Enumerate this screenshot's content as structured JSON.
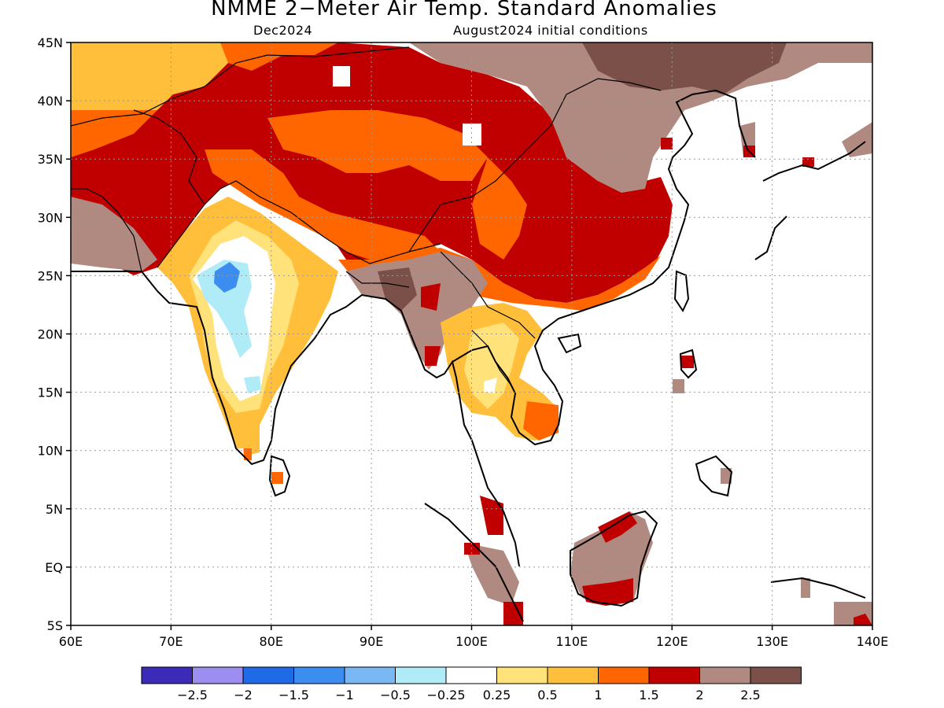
{
  "header": {
    "title": "NMME 2−Meter Air Temp. Standard Anomalies",
    "valid_month": "Dec2024",
    "init": "August2024 initial conditions"
  },
  "map": {
    "lon_range": [
      60,
      140
    ],
    "lat_range": [
      -5,
      45
    ],
    "lat_labels": [
      "45N",
      "40N",
      "35N",
      "30N",
      "25N",
      "20N",
      "15N",
      "10N",
      "5N",
      "EQ",
      "5S"
    ],
    "lon_labels": [
      "60E",
      "70E",
      "80E",
      "90E",
      "100E",
      "110E",
      "120E",
      "130E",
      "140E"
    ],
    "grid": true,
    "fields": {
      "levels": [
        "-2.5",
        "-2",
        "-1.5",
        "-1",
        "-0.5",
        "-0.25",
        "0.25",
        "0.5",
        "1",
        "1.5",
        "2",
        "2.5"
      ],
      "colors": [
        "#3b2bb8",
        "#9b8ef0",
        "#1f6ae6",
        "#3b8ef0",
        "#7ab7f5",
        "#b0ecf7",
        "#ffffff",
        "#ffe27a",
        "#ffbf3b",
        "#ff6600",
        "#c00000",
        "#b08a80",
        "#7a5048"
      ]
    }
  }
}
